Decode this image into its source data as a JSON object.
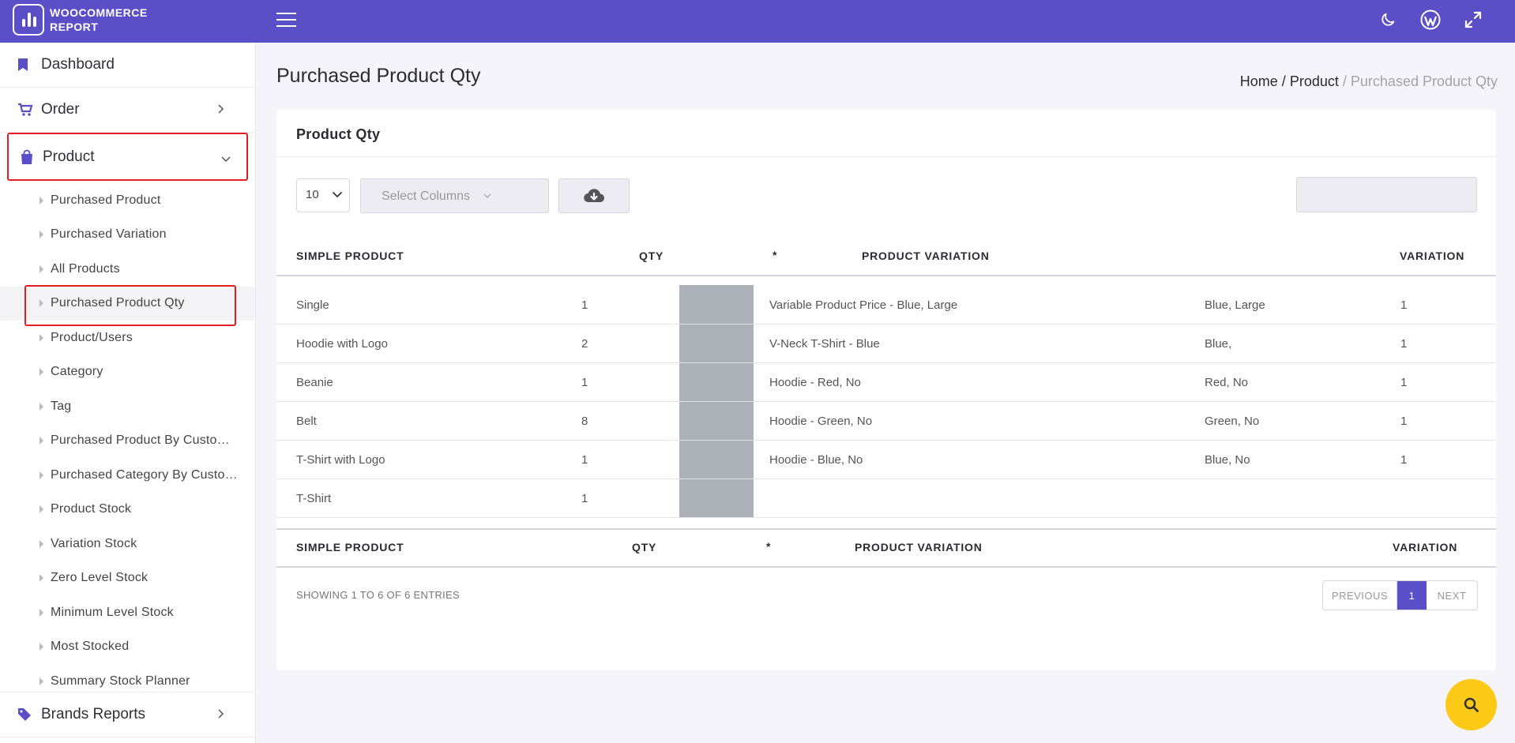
{
  "header": {
    "logo_line1": "WOOCOMMERCE",
    "logo_line2": "REPORT",
    "icons": [
      "menu-icon",
      "moon-icon",
      "wordpress-icon",
      "fullscreen-icon"
    ],
    "brand_color": "#5a4fc6"
  },
  "sidebar": {
    "dashboard": "Dashboard",
    "order": "Order",
    "product": "Product",
    "sub_items": [
      "Purchased Product",
      "Purchased Variation",
      "All Products",
      "Purchased Product Qty",
      "Product/Users",
      "Category",
      "Tag",
      "Purchased Product By Custo…",
      "Purchased Category By Custo…",
      "Product Stock",
      "Variation Stock",
      "Zero Level Stock",
      "Minimum Level Stock",
      "Most Stocked",
      "Summary Stock Planner"
    ],
    "brands": "Brands Reports"
  },
  "page": {
    "title": "Purchased Product Qty",
    "breadcrumb": {
      "home": "Home",
      "sep": "/",
      "product": "Product",
      "current": "Purchased Product Qty"
    }
  },
  "card": {
    "title": "Product Qty",
    "page_length": "10",
    "select_columns": "Select Columns",
    "search_value": ""
  },
  "table": {
    "headers": {
      "simple": "SIMPLE PRODUCT",
      "qty": "QTY",
      "star": "*",
      "variation": "PRODUCT VARIATION",
      "var_qty": "VARIATION"
    },
    "rows": [
      {
        "product": "Single",
        "qty": "1",
        "variation": "Variable Product Price - Blue, Large",
        "attrs": "Blue, Large",
        "var_qty": "1"
      },
      {
        "product": "Hoodie with Logo",
        "qty": "2",
        "variation": "V-Neck T-Shirt - Blue",
        "attrs": "Blue,",
        "var_qty": "1"
      },
      {
        "product": "Beanie",
        "qty": "1",
        "variation": "Hoodie - Red, No",
        "attrs": "Red, No",
        "var_qty": "1"
      },
      {
        "product": "Belt",
        "qty": "8",
        "variation": "Hoodie - Green, No",
        "attrs": "Green, No",
        "var_qty": "1"
      },
      {
        "product": "T-Shirt with Logo",
        "qty": "1",
        "variation": "Hoodie - Blue, No",
        "attrs": "Blue, No",
        "var_qty": "1"
      },
      {
        "product": "T-Shirt",
        "qty": "1",
        "variation": "",
        "attrs": "",
        "var_qty": ""
      }
    ],
    "showing": "SHOWING 1 TO 6 OF 6 ENTRIES",
    "pager": {
      "prev": "PREVIOUS",
      "current": "1",
      "next": "NEXT"
    }
  }
}
